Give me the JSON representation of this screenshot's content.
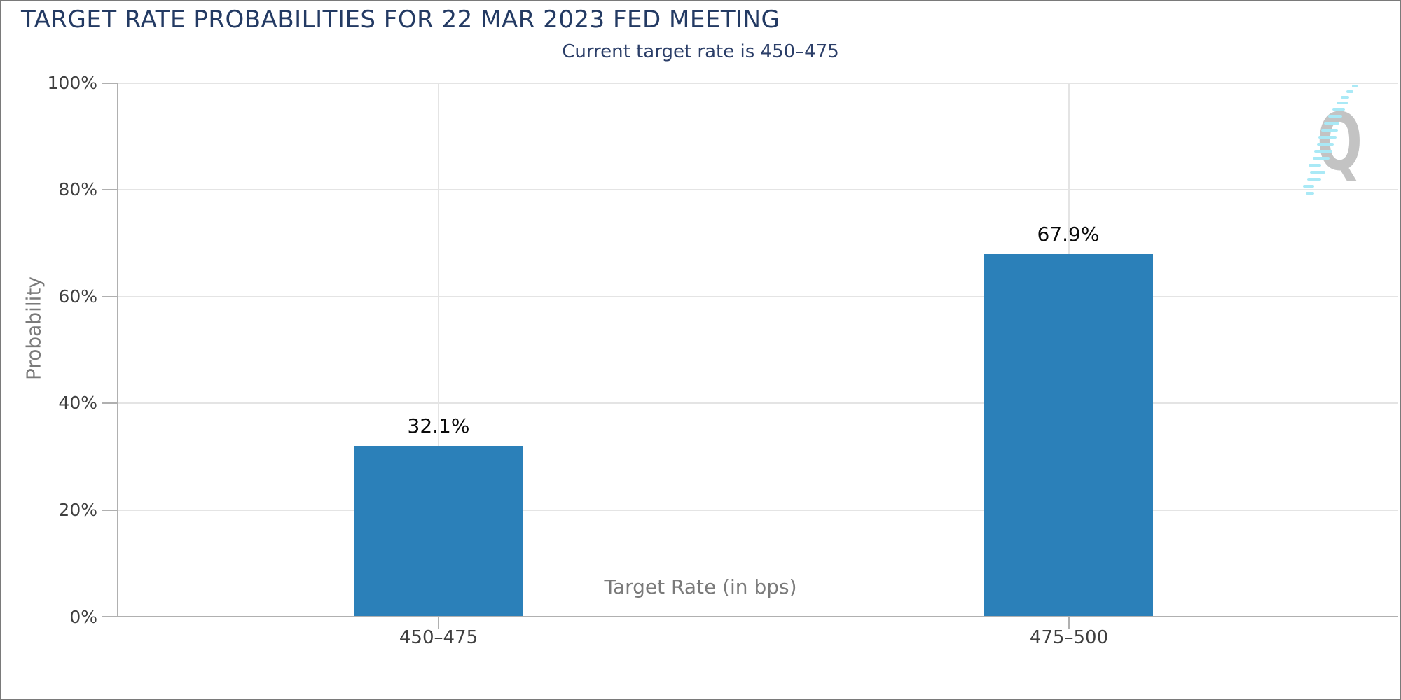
{
  "header": {
    "title": "TARGET RATE PROBABILITIES FOR 22 MAR 2023 FED MEETING",
    "subtitle": "Current target rate is 450–475"
  },
  "chart_data": {
    "type": "bar",
    "title": "TARGET RATE PROBABILITIES FOR 22 MAR 2023 FED MEETING",
    "subtitle": "Current target rate is 450–475",
    "categories": [
      "450–475",
      "475–500"
    ],
    "values": [
      32.1,
      67.9
    ],
    "value_labels": [
      "32.1%",
      "67.9%"
    ],
    "xlabel": "Target Rate (in bps)",
    "ylabel": "Probability",
    "ylim": [
      0,
      100
    ],
    "ytick_labels": [
      "0%",
      "20%",
      "40%",
      "60%",
      "80%",
      "100%"
    ],
    "grid": "horizontal lines every 20% plus one vertical line at each category center",
    "legend_position": "none",
    "bar_color": "#2b80b9"
  },
  "watermark": {
    "letter": "Q"
  },
  "colors": {
    "title": "#233a63",
    "subtitle": "#2b3e68",
    "bar": "#2b80b9",
    "gridline": "#e4e4e4",
    "axis_line": "#b0b0b0",
    "tick_label": "#3f3f3f",
    "axis_title": "#7a7a7a",
    "value_label": "#0a0a0a",
    "watermark_q": "#c3c3c3",
    "watermark_dash": "#a9e9f6",
    "border": "#7a7a7a"
  }
}
